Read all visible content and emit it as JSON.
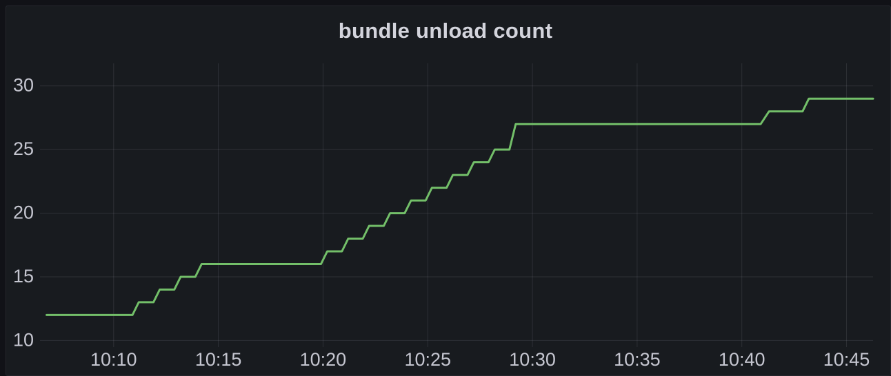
{
  "panel": {
    "title": "bundle unload count"
  },
  "colors": {
    "background_canvas": "#111217",
    "background_panel": "#181b1f",
    "panel_border": "#25272d",
    "grid": "rgba(204,204,220,0.12)",
    "axis_text": "#c5c6d0",
    "title_text": "#d3d4dc",
    "series_green": "#73bf69"
  },
  "chart_data": {
    "type": "line",
    "interpolation": "step-with-short-ramps",
    "title": "bundle unload count",
    "legend_position": "none",
    "grid": true,
    "x_axis": {
      "tick_labels": [
        "10:10",
        "10:15",
        "10:20",
        "10:25",
        "10:30",
        "10:35",
        "10:40",
        "10:45"
      ]
    },
    "y_axis": {
      "tick_labels": [
        10,
        15,
        20,
        25,
        30
      ]
    },
    "x_range": [
      "10:06:29",
      "10:46:16"
    ],
    "y_range": [
      9.48,
      31.77
    ],
    "series": [
      {
        "name": "bundle unload count",
        "color": "#73bf69",
        "points": [
          [
            "10:06:48",
            12
          ],
          [
            "10:10:54",
            12
          ],
          [
            "10:11:12",
            13
          ],
          [
            "10:11:54",
            13
          ],
          [
            "10:12:12",
            14
          ],
          [
            "10:12:54",
            14
          ],
          [
            "10:13:12",
            15
          ],
          [
            "10:13:54",
            15
          ],
          [
            "10:14:12",
            16
          ],
          [
            "10:19:54",
            16
          ],
          [
            "10:20:12",
            17
          ],
          [
            "10:20:54",
            17
          ],
          [
            "10:21:12",
            18
          ],
          [
            "10:21:54",
            18
          ],
          [
            "10:22:12",
            19
          ],
          [
            "10:22:54",
            19
          ],
          [
            "10:23:12",
            20
          ],
          [
            "10:23:54",
            20
          ],
          [
            "10:24:12",
            21
          ],
          [
            "10:24:54",
            21
          ],
          [
            "10:25:12",
            22
          ],
          [
            "10:25:54",
            22
          ],
          [
            "10:26:12",
            23
          ],
          [
            "10:26:54",
            23
          ],
          [
            "10:27:12",
            24
          ],
          [
            "10:27:54",
            24
          ],
          [
            "10:28:12",
            25
          ],
          [
            "10:28:54",
            25
          ],
          [
            "10:29:12",
            27
          ],
          [
            "10:40:54",
            27
          ],
          [
            "10:41:18",
            28
          ],
          [
            "10:42:54",
            28
          ],
          [
            "10:43:12",
            29
          ],
          [
            "10:46:16",
            29
          ]
        ]
      }
    ]
  }
}
